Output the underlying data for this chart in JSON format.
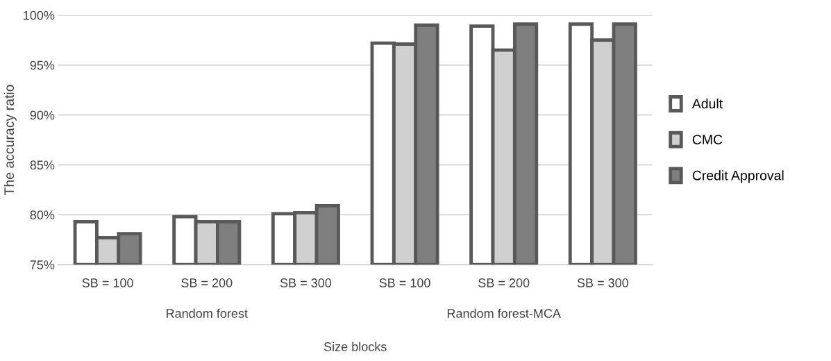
{
  "chart_data": {
    "type": "bar",
    "categories": [
      "SB = 100",
      "SB = 200",
      "SB = 300",
      "SB = 100",
      "SB = 200",
      "SB = 300"
    ],
    "series": [
      {
        "name": "Adult",
        "color": "#ffffff",
        "values": [
          79.3,
          79.8,
          80.1,
          97.2,
          98.9,
          99.1
        ]
      },
      {
        "name": "CMC",
        "color": "#d0d0d0",
        "values": [
          77.7,
          79.3,
          80.2,
          97.1,
          96.5,
          97.5
        ]
      },
      {
        "name": "Credit Approval",
        "color": "#7f7f7f",
        "values": [
          78.1,
          79.3,
          80.9,
          99.0,
          99.1,
          99.1
        ]
      }
    ],
    "xlabel": "Size blocks",
    "ylabel": "The accuracy ratio",
    "annotations": [
      "Random forest",
      "Random forest-MCA"
    ],
    "ylim": [
      75,
      100
    ],
    "yticks": [
      {
        "value": 75,
        "label": "75%"
      },
      {
        "value": 80,
        "label": "80%"
      },
      {
        "value": 85,
        "label": "85%"
      },
      {
        "value": 90,
        "label": "90%"
      },
      {
        "value": 95,
        "label": "95%"
      },
      {
        "value": 100,
        "label": "100%"
      }
    ],
    "grid": "y",
    "legend": "right"
  }
}
